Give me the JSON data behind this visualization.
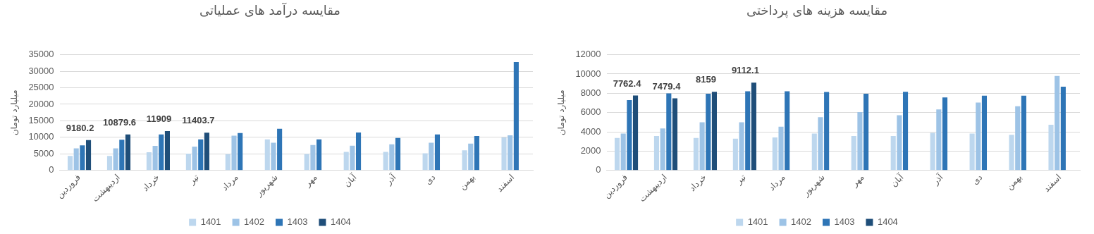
{
  "chart_data": [
    {
      "type": "bar",
      "title": "مقایسه درآمد های عملیاتی",
      "ylabel": "میلیارد تومان",
      "categories": [
        "فروردین",
        "اردیبهشت",
        "خرداد",
        "تیر",
        "مرداد",
        "شهریور",
        "مهر",
        "آبان",
        "آذر",
        "دی",
        "بهمن",
        "اسفند"
      ],
      "series": [
        {
          "name": "1401",
          "color": "#bdd7ee",
          "values": [
            4400,
            4400,
            5500,
            5100,
            4900,
            9400,
            5000,
            5600,
            5600,
            5200,
            6100,
            10000
          ]
        },
        {
          "name": "1402",
          "color": "#9dc3e6",
          "values": [
            6700,
            6700,
            7400,
            7200,
            10500,
            8400,
            7700,
            7500,
            7900,
            8400,
            8100,
            10600
          ]
        },
        {
          "name": "1403",
          "color": "#2e75b6",
          "values": [
            7600,
            9300,
            10900,
            9400,
            11300,
            12600,
            9400,
            11500,
            9800,
            10900,
            10400,
            32800
          ]
        },
        {
          "name": "1404",
          "color": "#1f4e79",
          "values": [
            9180.2,
            10879.6,
            11909,
            11403.7,
            null,
            null,
            null,
            null,
            null,
            null,
            null,
            null
          ],
          "value_labels": [
            "9180.2",
            "10879.6",
            "11909",
            "11403.7",
            null,
            null,
            null,
            null,
            null,
            null,
            null,
            null
          ]
        }
      ],
      "ylim": [
        0,
        35000
      ],
      "yticks": [
        0,
        5000,
        10000,
        15000,
        20000,
        25000,
        30000,
        35000
      ],
      "grid": "y",
      "legend": "bottom"
    },
    {
      "type": "bar",
      "title": "مقایسه هزینه های پرداختی",
      "ylabel": "میلیارد تومان",
      "categories": [
        "فروردین",
        "اردیبهشت",
        "خرداد",
        "تیر",
        "مرداد",
        "شهریور",
        "مهر",
        "آبان",
        "آذر",
        "دی",
        "بهمن",
        "اسفند"
      ],
      "series": [
        {
          "name": "1401",
          "color": "#bdd7ee",
          "values": [
            3360,
            3560,
            3360,
            3300,
            3430,
            3820,
            3560,
            3560,
            3890,
            3830,
            3690,
            4740
          ]
        },
        {
          "name": "1402",
          "color": "#9dc3e6",
          "values": [
            3820,
            4350,
            5000,
            5000,
            4540,
            5520,
            6050,
            5730,
            6320,
            7040,
            6650,
            9790
          ]
        },
        {
          "name": "1403",
          "color": "#2e75b6",
          "values": [
            7290,
            7990,
            7950,
            8210,
            8210,
            8140,
            7960,
            8150,
            7560,
            7760,
            7760,
            8680
          ]
        },
        {
          "name": "1404",
          "color": "#1f4e79",
          "values": [
            7762.4,
            7479.4,
            8159,
            9112.1,
            null,
            null,
            null,
            null,
            null,
            null,
            null,
            null
          ],
          "value_labels": [
            "7762.4",
            "7479.4",
            "8159",
            "9112.1",
            null,
            null,
            null,
            null,
            null,
            null,
            null,
            null
          ]
        }
      ],
      "ylim": [
        0,
        12000
      ],
      "yticks": [
        0,
        2000,
        4000,
        6000,
        8000,
        10000,
        12000
      ],
      "grid": "y",
      "legend": "bottom"
    }
  ]
}
